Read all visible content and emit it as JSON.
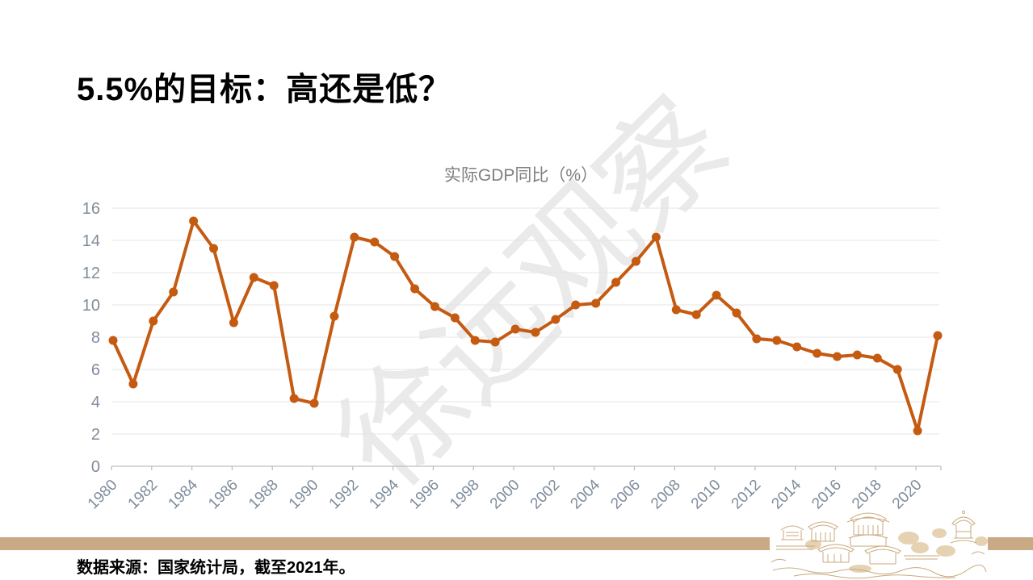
{
  "slide": {
    "title": "5.5%的目标：高还是低？"
  },
  "watermark": {
    "text": "徐远观察"
  },
  "chart": {
    "title": "实际GDP同比（%）"
  },
  "footer": {
    "source": "数据来源：国家统计局，截至2021年。"
  },
  "theme": {
    "accent_line": "#C55A11",
    "grid_color": "#E4E4E4",
    "axis_color": "#BFBFBF",
    "tick_label_color": "#7E8C9C",
    "chart_title_color": "#808080",
    "divider_color": "#C8AB84",
    "artwork_color": "#C9A97D"
  },
  "chart_data": {
    "type": "line",
    "title": "实际GDP同比（%）",
    "x": [
      1980,
      1981,
      1982,
      1983,
      1984,
      1985,
      1986,
      1987,
      1988,
      1989,
      1990,
      1991,
      1992,
      1993,
      1994,
      1995,
      1996,
      1997,
      1998,
      1999,
      2000,
      2001,
      2002,
      2003,
      2004,
      2005,
      2006,
      2007,
      2008,
      2009,
      2010,
      2011,
      2012,
      2013,
      2014,
      2015,
      2016,
      2017,
      2018,
      2019,
      2020,
      2021
    ],
    "values": [
      7.8,
      5.1,
      9.0,
      10.8,
      15.2,
      13.5,
      8.9,
      11.7,
      11.2,
      4.2,
      3.9,
      9.3,
      14.2,
      13.9,
      13.0,
      11.0,
      9.9,
      9.2,
      7.8,
      7.7,
      8.5,
      8.3,
      9.1,
      10.0,
      10.1,
      11.4,
      12.7,
      14.2,
      9.7,
      9.4,
      10.6,
      9.5,
      7.9,
      7.8,
      7.4,
      7.0,
      6.8,
      6.9,
      6.7,
      6.0,
      2.2,
      8.1
    ],
    "x_tick_labels": [
      "1980",
      "1982",
      "1984",
      "1986",
      "1988",
      "1990",
      "1992",
      "1994",
      "1996",
      "1998",
      "2000",
      "2002",
      "2004",
      "2006",
      "2008",
      "2010",
      "2012",
      "2014",
      "2016",
      "2018",
      "2020"
    ],
    "y_ticks": [
      0,
      2,
      4,
      6,
      8,
      10,
      12,
      14,
      16
    ],
    "ylim": [
      0,
      16
    ],
    "xlabel": "",
    "ylabel": "",
    "grid": "horizontal",
    "legend": "none",
    "marker": "circle",
    "line_color": "#C55A11"
  }
}
